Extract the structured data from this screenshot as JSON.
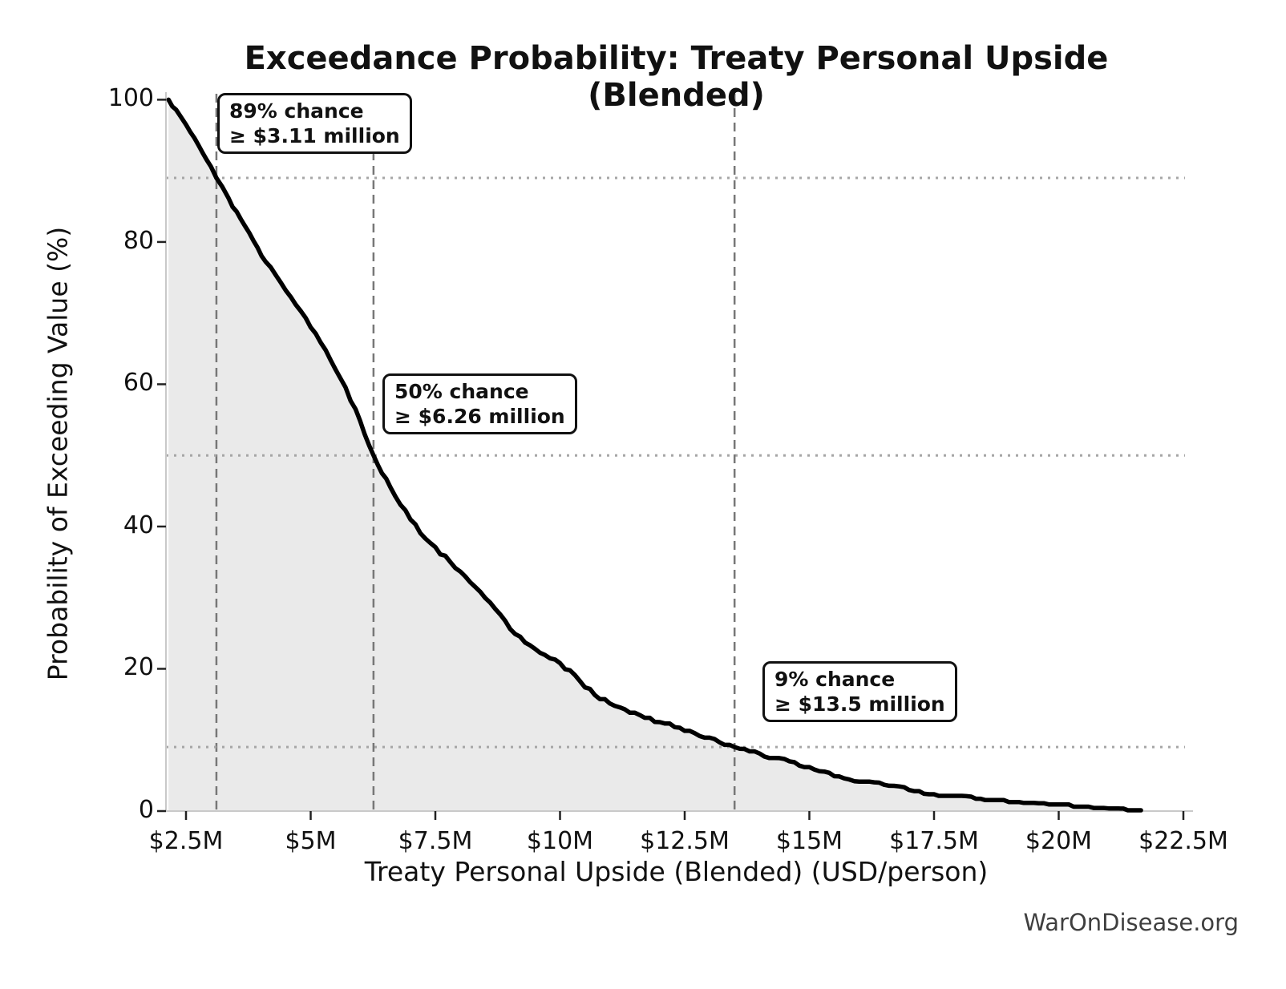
{
  "chart_data": {
    "type": "line",
    "title": "Exceedance Probability: Treaty Personal Upside (Blended)",
    "xlabel": "Treaty Personal Upside (Blended) (USD/person)",
    "ylabel": "Probability of Exceeding Value (%)",
    "watermark": "WarOnDisease.org",
    "grid": "reference lines only (no full grid)",
    "legend": "none",
    "x_axis": {
      "unit": "USD millions per person",
      "min": 2.1,
      "max": 22.56,
      "tick_values": [
        2.5,
        5,
        7.5,
        10,
        12.5,
        15,
        17.5,
        20,
        22.5
      ],
      "tick_labels": [
        "$2.5M",
        "$5M",
        "$7.5M",
        "$10M",
        "$12.5M",
        "$15M",
        "$17.5M",
        "$20M",
        "$22.5M"
      ]
    },
    "y_axis": {
      "unit": "percent",
      "min": 0,
      "max": 101,
      "tick_values": [
        0,
        20,
        40,
        60,
        80,
        100
      ],
      "tick_labels": [
        "0",
        "20",
        "40",
        "60",
        "80",
        "100"
      ]
    },
    "series": [
      {
        "name": "Exceedance probability of Treaty Personal Upside (Blended)",
        "style": "jagged empirical survival curve, black line, light gray fill down to 0",
        "points": [
          [
            2.15,
            100
          ],
          [
            2.3,
            98.6
          ],
          [
            2.5,
            96.5
          ],
          [
            2.75,
            93.6
          ],
          [
            3.0,
            90.6
          ],
          [
            3.11,
            89
          ],
          [
            3.35,
            86.2
          ],
          [
            3.6,
            83.2
          ],
          [
            3.85,
            80.2
          ],
          [
            4.1,
            77.2
          ],
          [
            4.4,
            74.3
          ],
          [
            4.7,
            71.2
          ],
          [
            5.0,
            68
          ],
          [
            5.3,
            64.8
          ],
          [
            5.6,
            60.8
          ],
          [
            5.9,
            56.5
          ],
          [
            6.26,
            50
          ],
          [
            6.6,
            45.5
          ],
          [
            7.0,
            41
          ],
          [
            7.3,
            38.3
          ],
          [
            7.8,
            35
          ],
          [
            8.3,
            31.5
          ],
          [
            8.6,
            29.3
          ],
          [
            9.0,
            25.6
          ],
          [
            9.5,
            22.8
          ],
          [
            10.0,
            20.8
          ],
          [
            10.7,
            16.3
          ],
          [
            11.3,
            14.3
          ],
          [
            12.3,
            11.8
          ],
          [
            13.0,
            10.4
          ],
          [
            13.5,
            9
          ],
          [
            14.0,
            8.1
          ],
          [
            14.6,
            7.0
          ],
          [
            15.0,
            6.2
          ],
          [
            15.5,
            4.9
          ],
          [
            16.5,
            3.7
          ],
          [
            17.5,
            2.4
          ],
          [
            18.9,
            1.6
          ],
          [
            20.0,
            1.0
          ],
          [
            20.8,
            0.6
          ],
          [
            21.3,
            0.35
          ],
          [
            21.65,
            0.1
          ]
        ]
      }
    ],
    "markers": [
      {
        "probability_pct": 89,
        "value_millions": 3.11,
        "label_line1": "89% chance",
        "label_line2": "≥ $3.11 million"
      },
      {
        "probability_pct": 50,
        "value_millions": 6.26,
        "label_line1": "50% chance",
        "label_line2": "≥ $6.26 million"
      },
      {
        "probability_pct": 9,
        "value_millions": 13.5,
        "label_line1": "9% chance",
        "label_line2": "≥ $13.5 million"
      }
    ],
    "colors": {
      "curve": "#000000",
      "fill": "#eaeaea",
      "dashed_marker_line": "#777777",
      "dotted_marker_line": "#a6a6a6",
      "spine": "#c9c9c9",
      "tick_mark": "#222222",
      "text": "#111111",
      "watermark": "#3f3f3f"
    }
  }
}
